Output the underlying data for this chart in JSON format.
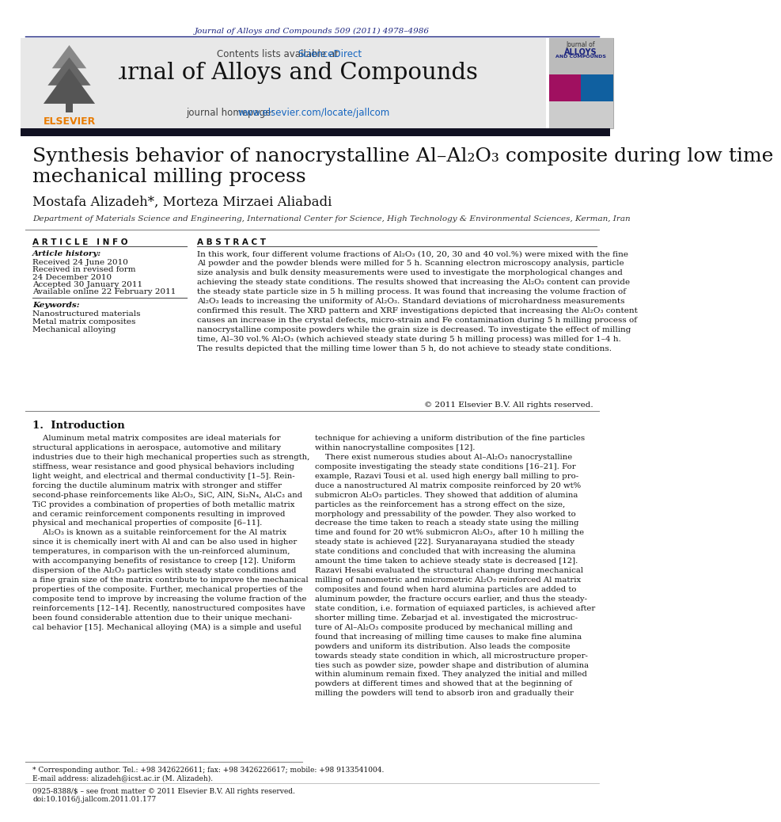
{
  "bg_color": "#ffffff",
  "header_journal_ref": "Journal of Alloys and Compounds 509 (2011) 4978–4986",
  "header_ref_color": "#1a237e",
  "contents_text": "Contents lists available at ",
  "sciencedirect_text": "ScienceDirect",
  "sciencedirect_color": "#1565c0",
  "journal_name": "Journal of Alloys and Compounds",
  "journal_homepage_prefix": "journal homepage: ",
  "journal_homepage_url": "www.elsevier.com/locate/jallcom",
  "header_bg": "#e8e8e8",
  "dark_bar_color": "#111122",
  "title_line1": "Synthesis behavior of nanocrystalline Al–Al₂O₃ composite during low time",
  "title_line2": "mechanical milling process",
  "authors": "Mostafa Alizadeh*, Morteza Mirzaei Aliabadi",
  "affiliation": "Department of Materials Science and Engineering, International Center for Science, High Technology & Environmental Sciences, Kerman, Iran",
  "article_info_header": "A R T I C L E   I N F O",
  "abstract_header": "A B S T R A C T",
  "article_history_label": "Article history:",
  "received1": "Received 24 June 2010",
  "received2": "Received in revised form",
  "received2b": "24 December 2010",
  "accepted": "Accepted 30 January 2011",
  "available": "Available online 22 February 2011",
  "keywords_label": "Keywords:",
  "keywords": [
    "Nanostructured materials",
    "Metal matrix composites",
    "Mechanical alloying"
  ],
  "abstract_text": "In this work, four different volume fractions of Al₂O₃ (10, 20, 30 and 40 vol.%) were mixed with the fine\nAl powder and the powder blends were milled for 5 h. Scanning electron microscopy analysis, particle\nsize analysis and bulk density measurements were used to investigate the morphological changes and\nachieving the steady state conditions. The results showed that increasing the Al₂O₃ content can provide\nthe steady state particle size in 5 h milling process. It was found that increasing the volume fraction of\nAl₂O₃ leads to increasing the uniformity of Al₂O₃. Standard deviations of microhardness measurements\nconfirmed this result. The XRD pattern and XRF investigations depicted that increasing the Al₂O₃ content\ncauses an increase in the crystal defects, micro-strain and Fe contamination during 5 h milling process of\nnanocrystalline composite powders while the grain size is decreased. To investigate the effect of milling\ntime, Al–30 vol.% Al₂O₃ (which achieved steady state during 5 h milling process) was milled for 1–4 h.\nThe results depicted that the milling time lower than 5 h, do not achieve to steady state conditions.",
  "copyright": "© 2011 Elsevier B.V. All rights reserved.",
  "intro_header": "1.  Introduction",
  "intro_col1": "    Aluminum metal matrix composites are ideal materials for\nstructural applications in aerospace, automotive and military\nindustries due to their high mechanical properties such as strength,\nstiffness, wear resistance and good physical behaviors including\nlight weight, and electrical and thermal conductivity [1–5]. Rein-\nforcing the ductile aluminum matrix with stronger and stiffer\nsecond-phase reinforcements like Al₂O₃, SiC, AlN, Si₃N₄, Al₄C₃ and\nTiC provides a combination of properties of both metallic matrix\nand ceramic reinforcement components resulting in improved\nphysical and mechanical properties of composite [6–11].\n    Al₂O₃ is known as a suitable reinforcement for the Al matrix\nsince it is chemically inert with Al and can be also used in higher\ntemperatures, in comparison with the un-reinforced aluminum,\nwith accompanying benefits of resistance to creep [12]. Uniform\ndispersion of the Al₂O₃ particles with steady state conditions and\na fine grain size of the matrix contribute to improve the mechanical\nproperties of the composite. Further, mechanical properties of the\ncomposite tend to improve by increasing the volume fraction of the\nreinforcements [12–14]. Recently, nanostructured composites have\nbeen found considerable attention due to their unique mechani-\ncal behavior [15]. Mechanical alloying (MA) is a simple and useful",
  "intro_col2": "technique for achieving a uniform distribution of the fine particles\nwithin nanocrystalline composites [12].\n    There exist numerous studies about Al–Al₂O₃ nanocrystalline\ncomposite investigating the steady state conditions [16–21]. For\nexample, Razavi Tousi et al. used high energy ball milling to pro-\nduce a nanostructured Al matrix composite reinforced by 20 wt%\nsubmicron Al₂O₃ particles. They showed that addition of alumina\nparticles as the reinforcement has a strong effect on the size,\nmorphology and pressability of the powder. They also worked to\ndecrease the time taken to reach a steady state using the milling\ntime and found for 20 wt% submicron Al₂O₃, after 10 h milling the\nsteady state is achieved [22]. Suryanarayana studied the steady\nstate conditions and concluded that with increasing the alumina\namount the time taken to achieve steady state is decreased [12].\nRazavi Hesabi evaluated the structural change during mechanical\nmilling of nanometric and micrometric Al₂O₃ reinforced Al matrix\ncomposites and found when hard alumina particles are added to\naluminum powder, the fracture occurs earlier, and thus the steady-\nstate condition, i.e. formation of equiaxed particles, is achieved after\nshorter milling time. Zebarjad et al. investigated the microstruc-\nture of Al–Al₂O₃ composite produced by mechanical milling and\nfound that increasing of milling time causes to make fine alumina\npowders and uniform its distribution. Also leads the composite\ntowards steady state condition in which, all microstructure proper-\nties such as powder size, powder shape and distribution of alumina\nwithin aluminum remain fixed. They analyzed the initial and milled\npowders at different times and showed that at the beginning of\nmilling the powders will tend to absorb iron and gradually their",
  "footnote1": "* Corresponding author. Tel.: +98 3426226611; fax: +98 3426226617; mobile: +98 9133541004.",
  "footnote2": "E-mail address: alizadeh@icst.ac.ir (M. Alizadeh).",
  "footnote3": "0925-8388/$ – see front matter © 2011 Elsevier B.V. All rights reserved.",
  "footnote4": "doi:10.1016/j.jallcom.2011.01.177",
  "cover_text1": "Journal of",
  "cover_text2": "ALLOYS",
  "cover_text3": "AND COMPOUNDS",
  "elsevier_text": "ELSEVIER",
  "elsevier_color": "#E87B00"
}
